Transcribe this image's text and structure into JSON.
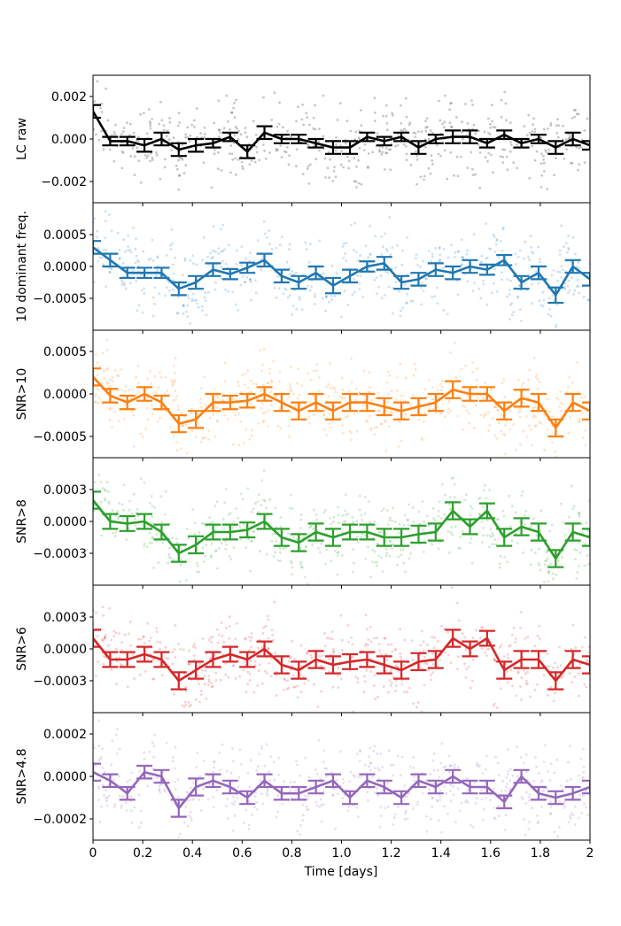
{
  "chart_data": {
    "type": "line",
    "xlabel": "Time [days]",
    "xlim": [
      0,
      2
    ],
    "xticks": [
      "0",
      "0.2",
      "0.4",
      "0.6",
      "0.8",
      "1.0",
      "1.2",
      "1.4",
      "1.6",
      "1.8",
      "2"
    ],
    "x": [
      0.0,
      0.069,
      0.138,
      0.207,
      0.276,
      0.345,
      0.414,
      0.483,
      0.552,
      0.621,
      0.69,
      0.759,
      0.828,
      0.897,
      0.966,
      1.034,
      1.103,
      1.172,
      1.241,
      1.31,
      1.379,
      1.448,
      1.517,
      1.586,
      1.655,
      1.724,
      1.793,
      1.862,
      1.931,
      2.0
    ],
    "panels": [
      {
        "name": "lc-raw",
        "ylabel": "LC raw",
        "color": "#000000",
        "ylim": [
          -0.003,
          0.003
        ],
        "yticks": [
          0.002,
          0.0,
          -0.002
        ],
        "ytick_labels": [
          "0.002",
          "0.000",
          "−0.002"
        ],
        "scatter_amplitude": 0.0026,
        "values": [
          0.0013,
          -0.0001,
          -0.0001,
          -0.0003,
          0.0,
          -0.0005,
          -0.0003,
          -0.0002,
          0.0001,
          -0.0006,
          0.0003,
          0.0,
          0.0,
          -0.0002,
          -0.0004,
          -0.0004,
          0.0001,
          -0.0001,
          0.0001,
          -0.0004,
          0.0,
          0.0001,
          0.0001,
          -0.0002,
          0.0002,
          -0.0002,
          0.0,
          -0.0004,
          0.0,
          -0.0003
        ],
        "errors": [
          0.0003,
          0.0002,
          0.0002,
          0.0003,
          0.0003,
          0.0003,
          0.0003,
          0.0002,
          0.0002,
          0.0003,
          0.0003,
          0.0002,
          0.0002,
          0.0002,
          0.0003,
          0.0003,
          0.0002,
          0.0002,
          0.0002,
          0.0003,
          0.0002,
          0.0003,
          0.0003,
          0.0002,
          0.0002,
          0.0002,
          0.0002,
          0.0003,
          0.0003,
          0.0002
        ]
      },
      {
        "name": "10-dominant-freq",
        "ylabel": "10 dominant freq.",
        "color": "#1f77b4",
        "ylim": [
          -0.001,
          0.001
        ],
        "yticks": [
          0.0005,
          0.0,
          -0.0005
        ],
        "ytick_labels": [
          "0.0005",
          "0.0000",
          "−0.0005"
        ],
        "scatter_amplitude": 0.00095,
        "values": [
          0.0003,
          0.0001,
          -0.0001,
          -0.0001,
          -0.0001,
          -0.00035,
          -0.00025,
          -5e-05,
          -0.00012,
          -2e-05,
          0.0001,
          -0.00015,
          -0.00025,
          -0.0001,
          -0.0003,
          -0.00015,
          0.0,
          5e-05,
          -0.00025,
          -0.0002,
          -5e-05,
          -0.0001,
          0.0,
          -5e-05,
          0.0001,
          -0.00025,
          -0.0001,
          -0.00045,
          0.0,
          -0.0002
        ],
        "errors": [
          0.0001,
          0.0001,
          8e-05,
          8e-05,
          8e-05,
          0.0001,
          0.0001,
          0.0001,
          8e-05,
          8e-05,
          0.0001,
          0.0001,
          0.0001,
          0.0001,
          0.00012,
          0.0001,
          8e-05,
          0.0001,
          0.0001,
          0.0001,
          0.0001,
          0.0001,
          0.0001,
          8e-05,
          8e-05,
          0.0001,
          0.0001,
          0.00012,
          0.0001,
          0.0001
        ]
      },
      {
        "name": "snr-10",
        "ylabel": "SNR>10",
        "color": "#ff7f0e",
        "ylim": [
          -0.00075,
          0.00075
        ],
        "yticks": [
          0.0005,
          0.0,
          -0.0005
        ],
        "ytick_labels": [
          "0.0005",
          "0.0000",
          "−0.0005"
        ],
        "scatter_amplitude": 0.0007,
        "values": [
          0.0002,
          -2e-05,
          -0.0001,
          0.0,
          -0.0001,
          -0.00035,
          -0.0003,
          -0.0001,
          -0.0001,
          -8e-05,
          0.0,
          -0.0001,
          -0.0002,
          -0.0001,
          -0.0002,
          -0.0001,
          -0.0001,
          -0.00015,
          -0.0002,
          -0.00015,
          -0.0001,
          5e-05,
          0.0,
          0.0,
          -0.0002,
          -5e-05,
          -0.0001,
          -0.0004,
          -0.0001,
          -0.0002
        ],
        "errors": [
          0.0001,
          8e-05,
          8e-05,
          8e-05,
          8e-05,
          0.0001,
          0.0001,
          0.0001,
          8e-05,
          8e-05,
          8e-05,
          0.0001,
          0.0001,
          0.0001,
          0.0001,
          0.0001,
          0.0001,
          0.0001,
          0.0001,
          0.0001,
          0.0001,
          0.0001,
          8e-05,
          8e-05,
          0.0001,
          0.0001,
          0.0001,
          0.0001,
          0.0001,
          0.0001
        ]
      },
      {
        "name": "snr-8",
        "ylabel": "SNR>8",
        "color": "#2ca02c",
        "ylim": [
          -0.0006,
          0.0006
        ],
        "yticks": [
          0.0003,
          0.0,
          -0.0003
        ],
        "ytick_labels": [
          "0.0003",
          "0.0000",
          "−0.0003"
        ],
        "scatter_amplitude": 0.00055,
        "values": [
          0.0002,
          0.0,
          -2e-05,
          0.0,
          -0.0001,
          -0.0003,
          -0.00022,
          -0.0001,
          -0.0001,
          -8e-05,
          0.0,
          -0.00015,
          -0.0002,
          -0.0001,
          -0.00015,
          -0.0001,
          -0.0001,
          -0.00015,
          -0.00015,
          -0.00012,
          -0.0001,
          0.0001,
          -5e-05,
          0.0001,
          -0.00015,
          -5e-05,
          -0.0001,
          -0.00035,
          -0.0001,
          -0.00015
        ],
        "errors": [
          8e-05,
          7e-05,
          7e-05,
          7e-05,
          7e-05,
          8e-05,
          8e-05,
          7e-05,
          7e-05,
          7e-05,
          7e-05,
          8e-05,
          8e-05,
          8e-05,
          8e-05,
          7e-05,
          7e-05,
          8e-05,
          8e-05,
          8e-05,
          8e-05,
          8e-05,
          7e-05,
          7e-05,
          8e-05,
          8e-05,
          8e-05,
          8e-05,
          8e-05,
          8e-05
        ]
      },
      {
        "name": "snr-6",
        "ylabel": "SNR>6",
        "color": "#d62728",
        "ylim": [
          -0.0006,
          0.0006
        ],
        "yticks": [
          0.0003,
          0.0,
          -0.0003
        ],
        "ytick_labels": [
          "0.0003",
          "0.0000",
          "−0.0003"
        ],
        "scatter_amplitude": 0.00055,
        "values": [
          0.0001,
          -0.0001,
          -0.0001,
          -5e-05,
          -0.0001,
          -0.0003,
          -0.0002,
          -0.0001,
          -5e-05,
          -0.0001,
          0.0,
          -0.00015,
          -0.0002,
          -0.0001,
          -0.00015,
          -0.00012,
          -0.0001,
          -0.00015,
          -0.0002,
          -0.00012,
          -0.0001,
          0.0001,
          0.0,
          0.0001,
          -0.0002,
          -0.0001,
          -0.0001,
          -0.0003,
          -0.0001,
          -0.00015
        ],
        "errors": [
          8e-05,
          7e-05,
          7e-05,
          7e-05,
          7e-05,
          8e-05,
          8e-05,
          7e-05,
          7e-05,
          7e-05,
          7e-05,
          8e-05,
          8e-05,
          8e-05,
          8e-05,
          7e-05,
          7e-05,
          8e-05,
          8e-05,
          8e-05,
          8e-05,
          8e-05,
          7e-05,
          7e-05,
          8e-05,
          8e-05,
          8e-05,
          8e-05,
          8e-05,
          8e-05
        ]
      },
      {
        "name": "snr-4-8",
        "ylabel": "SNR>4.8",
        "color": "#9467bd",
        "ylim": [
          -0.0003,
          0.0003
        ],
        "yticks": [
          0.0002,
          0.0,
          -0.0002
        ],
        "ytick_labels": [
          "0.0002",
          "0.0000",
          "−0.0002"
        ],
        "scatter_amplitude": 0.00028,
        "values": [
          2e-05,
          -2e-05,
          -8e-05,
          2e-05,
          0.0,
          -0.00015,
          -5e-05,
          -2e-05,
          -5e-05,
          -0.0001,
          -2e-05,
          -8e-05,
          -8e-05,
          -5e-05,
          -2e-05,
          -0.0001,
          -2e-05,
          -5e-05,
          -0.0001,
          -2e-05,
          -5e-05,
          0.0,
          -5e-05,
          -5e-05,
          -0.00012,
          0.0,
          -8e-05,
          -0.0001,
          -8e-05,
          -5e-05
        ],
        "errors": [
          4e-05,
          3e-05,
          3e-05,
          3e-05,
          3e-05,
          4e-05,
          4e-05,
          3e-05,
          3e-05,
          3e-05,
          3e-05,
          3e-05,
          3e-05,
          3e-05,
          3e-05,
          3e-05,
          3e-05,
          3e-05,
          3e-05,
          3e-05,
          3e-05,
          3e-05,
          3e-05,
          3e-05,
          3e-05,
          3e-05,
          3e-05,
          3e-05,
          3e-05,
          3e-05
        ]
      }
    ]
  }
}
